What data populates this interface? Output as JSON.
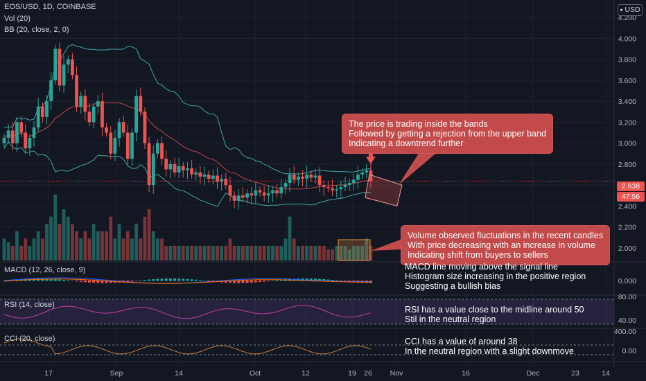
{
  "legend": {
    "symbol": "EOS/USD, 1D, COINBASE",
    "volume": "Vol (20)",
    "bollinger": "BB (20, close, 2, 0)"
  },
  "price_axis": {
    "currency_button": "USD",
    "ticks": [
      "4.200",
      "4.000",
      "3.800",
      "3.600",
      "3.400",
      "3.200",
      "3.000",
      "2.800",
      "2.638",
      "2.400",
      "2.200",
      "2.000"
    ],
    "last_price": "2.638",
    "countdown": "47:56"
  },
  "macd_pane": {
    "label": "MACD (12, 26, close, 9)",
    "tick": "0.000"
  },
  "rsi_pane": {
    "label": "RSI (14, close)",
    "ticks": [
      "80.00",
      "40.00"
    ]
  },
  "cci_pane": {
    "label": "CCI (20, close)",
    "ticks": [
      "400.00",
      "0.00"
    ]
  },
  "time_axis": [
    "17",
    "Sep",
    "14",
    "Oct",
    "12",
    "19",
    "26",
    "Nov",
    "16",
    "23",
    "Dec",
    "14"
  ],
  "annotations": {
    "price_callout": [
      "The price is trading inside the bands",
      "Followed by getting a rejection from the upper band",
      "Indicating a downtrend further"
    ],
    "volume_callout": [
      "Volume observed fluctuations in the recent candles",
      "With price decreasing with an increase in volume",
      "Indicating shift from buyers to sellers"
    ],
    "macd_note": [
      "MACD line moving above the signal line",
      "Histogram size increasing in the positive region",
      "Suggesting a bullish bias"
    ],
    "rsi_note": [
      "RSI has a value close to the midline around 50",
      "Stil in the neutral region"
    ],
    "cci_note": [
      "CCI has a value of around 38",
      "In the neutral region with a slight downmove"
    ]
  },
  "colors": {
    "background": "#131722",
    "up": "#26a69a",
    "down": "#ef5350",
    "bb_band": "#3fa7a9",
    "bb_basis": "#c2474a",
    "callout": "#c24a4a",
    "rsi_line": "#c040a0",
    "cci_line": "#c08040"
  },
  "chart_data": {
    "type": "candlestick",
    "title": "EOS/USD, 1D, COINBASE",
    "ylim": [
      1.88,
      4.3
    ],
    "y_ticks": [
      2.0,
      2.2,
      2.4,
      2.6,
      2.8,
      3.0,
      3.2,
      3.4,
      3.6,
      3.8,
      4.0,
      4.2
    ],
    "last_close": 2.638,
    "closes": [
      3.05,
      3.12,
      3.0,
      3.2,
      3.1,
      2.95,
      3.05,
      3.15,
      3.35,
      3.25,
      3.4,
      3.6,
      3.9,
      3.55,
      3.75,
      3.8,
      3.65,
      3.35,
      3.45,
      3.3,
      3.2,
      3.35,
      3.4,
      3.15,
      3.1,
      2.9,
      3.05,
      3.2,
      3.1,
      2.85,
      3.1,
      3.45,
      3.3,
      3.0,
      2.6,
      2.9,
      3.0,
      2.85,
      2.75,
      2.8,
      2.72,
      2.78,
      2.74,
      2.76,
      2.7,
      2.72,
      2.68,
      2.7,
      2.66,
      2.69,
      2.63,
      2.66,
      2.6,
      2.5,
      2.45,
      2.5,
      2.48,
      2.52,
      2.5,
      2.55,
      2.53,
      2.5,
      2.52,
      2.55,
      2.52,
      2.58,
      2.62,
      2.7,
      2.65,
      2.68,
      2.66,
      2.7,
      2.67,
      2.69,
      2.6,
      2.58,
      2.57,
      2.55,
      2.56,
      2.58,
      2.6,
      2.62,
      2.65,
      2.7,
      2.72,
      2.74,
      2.64
    ],
    "volume": [
      3,
      2.5,
      2,
      4,
      2,
      3,
      2,
      3,
      4,
      3,
      5,
      6,
      9,
      5,
      7,
      6,
      5,
      4,
      3,
      4,
      3,
      5,
      4,
      4,
      4,
      6,
      3,
      5,
      3,
      4,
      3,
      5,
      3,
      6,
      7,
      4,
      3,
      3,
      2,
      2,
      2,
      2,
      2,
      2,
      2,
      2,
      2,
      2,
      2,
      2,
      2,
      2,
      2,
      3,
      2,
      2,
      2,
      2,
      2,
      2,
      2,
      2,
      2,
      2,
      2,
      2,
      3,
      6,
      3,
      2,
      2,
      2,
      2,
      2,
      2,
      2,
      1.5,
      1.5,
      2,
      2,
      2,
      1.5,
      2,
      2,
      2,
      3,
      2
    ],
    "macd_ylim": [
      -0.1,
      0.1
    ],
    "rsi_ylim": [
      30,
      80
    ],
    "cci_ylim": [
      -100,
      400
    ]
  }
}
